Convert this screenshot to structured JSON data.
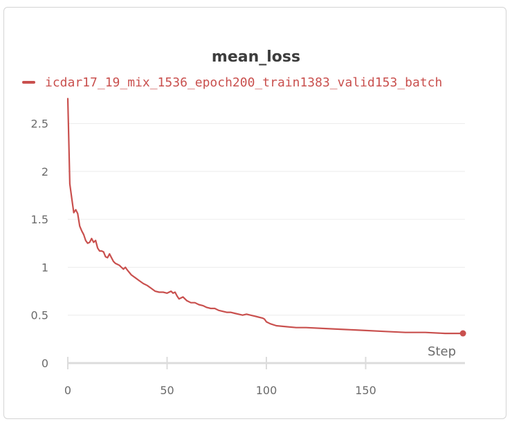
{
  "colors": {
    "series": "#c9504e",
    "grid": "#ececec",
    "axis": "#dcdcdc",
    "text": "#6b6b6b"
  },
  "chart_data": {
    "type": "line",
    "title": "mean_loss",
    "xlabel": "Step",
    "ylabel": "",
    "xlim": [
      0,
      200
    ],
    "ylim": [
      0,
      2.75
    ],
    "xticks": [
      0,
      50,
      100,
      150
    ],
    "xtick_labels": [
      "0",
      "50",
      "100",
      "150"
    ],
    "yticks": [
      0,
      0.5,
      1,
      1.5,
      2,
      2.5
    ],
    "ytick_labels": [
      "0",
      "0.5",
      "1",
      "1.5",
      "2",
      "2.5"
    ],
    "grid": true,
    "legend": "top-left",
    "series": [
      {
        "name": "icdar17_19_mix_1536_epoch200_train1383_valid153_batch",
        "color": "#c9504e",
        "x": [
          0,
          1,
          2,
          3,
          4,
          5,
          6,
          7,
          8,
          9,
          10,
          11,
          12,
          13,
          14,
          15,
          16,
          17,
          18,
          19,
          20,
          21,
          22,
          23,
          24,
          25,
          26,
          27,
          28,
          29,
          30,
          32,
          34,
          36,
          38,
          40,
          42,
          44,
          46,
          48,
          50,
          52,
          53,
          54,
          55,
          56,
          58,
          60,
          62,
          64,
          66,
          68,
          70,
          72,
          74,
          76,
          78,
          80,
          82,
          84,
          86,
          88,
          90,
          92,
          94,
          96,
          98,
          99,
          100,
          102,
          105,
          110,
          115,
          120,
          130,
          140,
          150,
          160,
          170,
          180,
          190,
          199
        ],
        "values": [
          2.76,
          1.87,
          1.72,
          1.57,
          1.6,
          1.56,
          1.43,
          1.38,
          1.34,
          1.28,
          1.25,
          1.26,
          1.3,
          1.26,
          1.28,
          1.2,
          1.17,
          1.17,
          1.16,
          1.11,
          1.1,
          1.14,
          1.1,
          1.06,
          1.04,
          1.03,
          1.02,
          1.0,
          0.98,
          1.0,
          0.97,
          0.92,
          0.89,
          0.86,
          0.83,
          0.81,
          0.78,
          0.75,
          0.74,
          0.74,
          0.73,
          0.75,
          0.73,
          0.74,
          0.7,
          0.67,
          0.69,
          0.65,
          0.63,
          0.63,
          0.61,
          0.6,
          0.58,
          0.57,
          0.57,
          0.55,
          0.54,
          0.53,
          0.53,
          0.52,
          0.51,
          0.5,
          0.51,
          0.5,
          0.49,
          0.48,
          0.47,
          0.46,
          0.43,
          0.41,
          0.39,
          0.38,
          0.37,
          0.37,
          0.36,
          0.35,
          0.34,
          0.33,
          0.32,
          0.32,
          0.31,
          0.31
        ]
      }
    ]
  }
}
